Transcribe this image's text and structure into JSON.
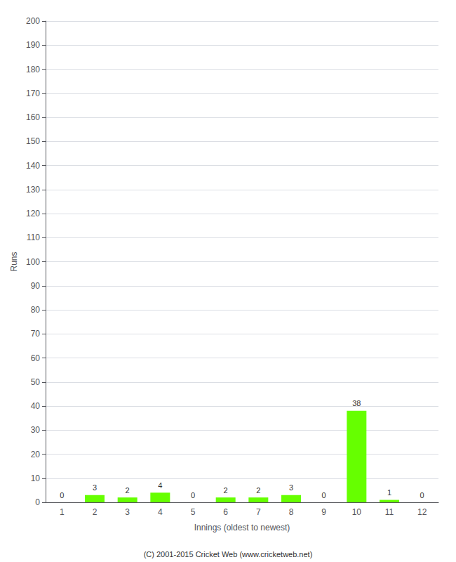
{
  "chart_data": {
    "type": "bar",
    "categories": [
      "1",
      "2",
      "3",
      "4",
      "5",
      "6",
      "7",
      "8",
      "9",
      "10",
      "11",
      "12"
    ],
    "values": [
      0,
      3,
      2,
      4,
      0,
      2,
      2,
      3,
      0,
      38,
      1,
      0
    ],
    "color": "#66ff00",
    "xlabel": "Innings (oldest to newest)",
    "ylabel": "Runs",
    "ylim": [
      0,
      200
    ],
    "yticks": [
      0,
      10,
      20,
      30,
      40,
      50,
      60,
      70,
      80,
      90,
      100,
      110,
      120,
      130,
      140,
      150,
      160,
      170,
      180,
      190,
      200
    ],
    "grid": true,
    "data_labels": true,
    "annotations": [
      "(C) 2001-2015 Cricket Web (www.cricketweb.net)"
    ]
  }
}
